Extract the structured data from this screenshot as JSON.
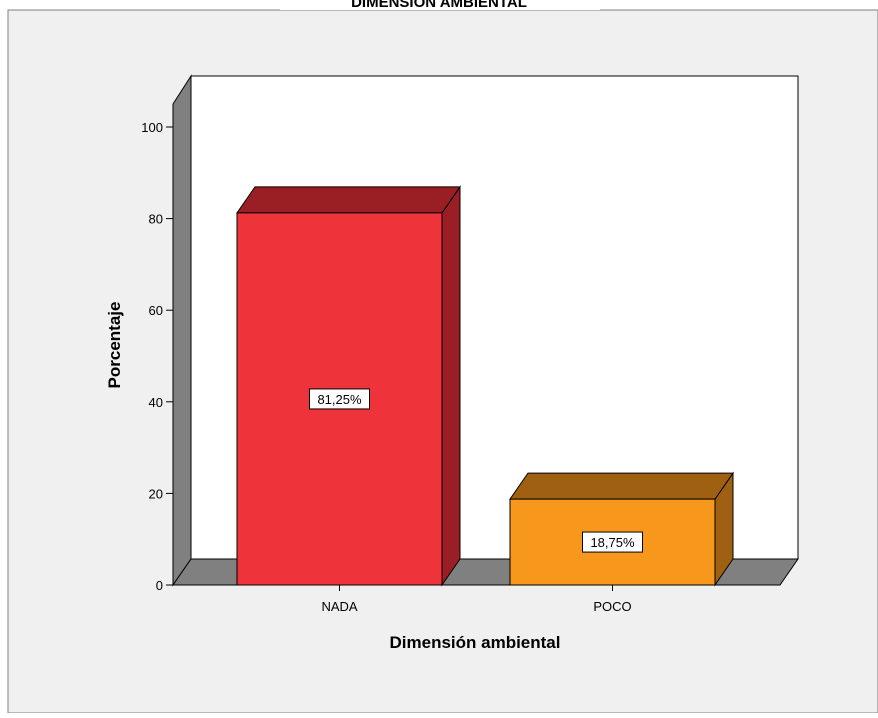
{
  "chart_data": {
    "type": "bar",
    "title": "DIMENSIÓN AMBIENTAL",
    "xlabel": "Dimensión ambiental",
    "ylabel": "Porcentaje",
    "categories": [
      "NADA",
      "POCO"
    ],
    "values": [
      81.25,
      18.75
    ],
    "data_labels": [
      "81,25%",
      "18,75%"
    ],
    "y_ticks": [
      0,
      20,
      40,
      60,
      80,
      100
    ],
    "ylim": [
      0,
      100
    ],
    "grid": false,
    "legend": "none",
    "style": "3d",
    "colors": {
      "bars": [
        {
          "front": "#EF333B",
          "top": "#991F25",
          "side": "#991F25"
        },
        {
          "front": "#F7981D",
          "top": "#A06011",
          "side": "#A06011"
        }
      ],
      "floor": "#808080",
      "wall": "#808080",
      "plot_bg": "#ffffff",
      "frame_bg": "#f0f0f0"
    }
  }
}
